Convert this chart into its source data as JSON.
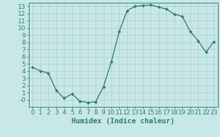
{
  "x": [
    0,
    1,
    2,
    3,
    4,
    5,
    6,
    7,
    8,
    9,
    10,
    11,
    12,
    13,
    14,
    15,
    16,
    17,
    18,
    19,
    20,
    21,
    22,
    23
  ],
  "y": [
    4.5,
    4.0,
    3.7,
    1.3,
    0.2,
    0.8,
    -0.2,
    -0.4,
    -0.3,
    1.8,
    5.3,
    9.5,
    12.4,
    13.0,
    13.1,
    13.2,
    12.9,
    12.6,
    11.9,
    11.6,
    9.5,
    8.2,
    6.6,
    8.1
  ],
  "line_color": "#2e7d6e",
  "marker": "D",
  "marker_size": 2.0,
  "bg_color": "#c8e8e8",
  "grid_color": "#aacccc",
  "xlabel": "Humidex (Indice chaleur)",
  "xlim": [
    -0.5,
    23.5
  ],
  "ylim": [
    -1,
    13.5
  ],
  "yticks": [
    0,
    1,
    2,
    3,
    4,
    5,
    6,
    7,
    8,
    9,
    10,
    11,
    12,
    13
  ],
  "ytick_labels": [
    "-0",
    "1",
    "2",
    "3",
    "4",
    "5",
    "6",
    "7",
    "8",
    "9",
    "10",
    "11",
    "12",
    "13"
  ],
  "xticks": [
    0,
    1,
    2,
    3,
    4,
    5,
    6,
    7,
    8,
    9,
    10,
    11,
    12,
    13,
    14,
    15,
    16,
    17,
    18,
    19,
    20,
    21,
    22,
    23
  ],
  "tick_color": "#2e7d6e",
  "label_color": "#2e7d6e",
  "xlabel_fontsize": 7.5,
  "tick_fontsize": 6.5,
  "linewidth": 1.0
}
